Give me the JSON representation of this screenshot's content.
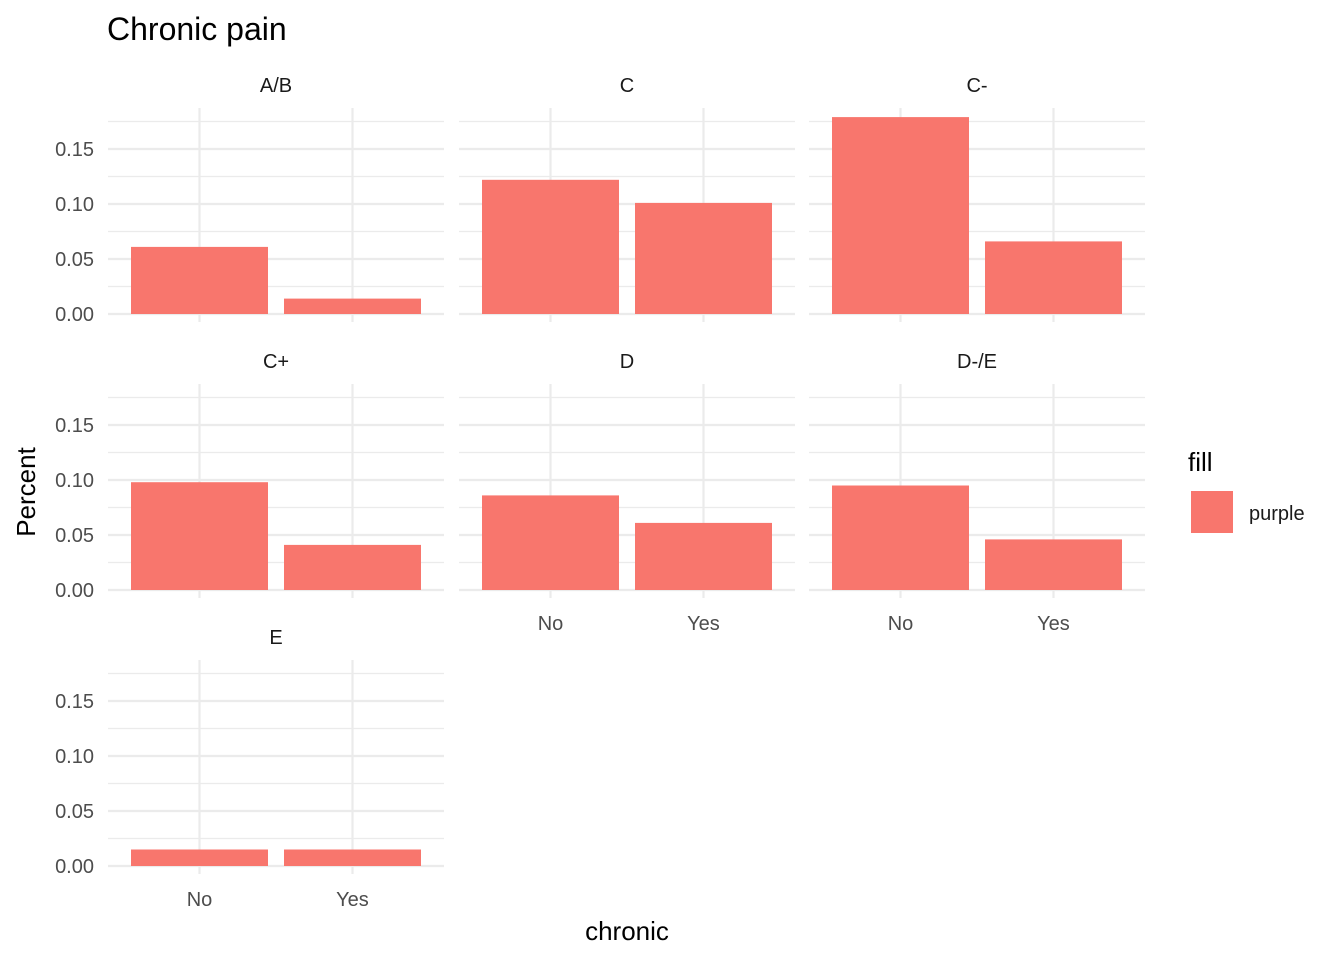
{
  "chart_data": {
    "type": "bar",
    "title": "Chronic pain",
    "xlabel": "chronic",
    "ylabel": "Percent",
    "categories": [
      "No",
      "Yes"
    ],
    "ylim": [
      0,
      0.18
    ],
    "y_ticks": [
      "0.00",
      "0.05",
      "0.10",
      "0.15"
    ],
    "y_tick_values": [
      0,
      0.05,
      0.1,
      0.15
    ],
    "grid": true,
    "legend": {
      "title": "fill",
      "position": "right",
      "entries": [
        {
          "label": "purple",
          "color": "#F8766D"
        }
      ]
    },
    "bar_color": "#F8766D",
    "facets": [
      {
        "label": "A/B",
        "values": [
          0.061,
          0.014
        ]
      },
      {
        "label": "C",
        "values": [
          0.122,
          0.101
        ]
      },
      {
        "label": "C-",
        "values": [
          0.179,
          0.066
        ]
      },
      {
        "label": "C+",
        "values": [
          0.098,
          0.041
        ]
      },
      {
        "label": "D",
        "values": [
          0.086,
          0.061
        ]
      },
      {
        "label": "D-/E",
        "values": [
          0.095,
          0.046
        ]
      },
      {
        "label": "E",
        "values": [
          0.015,
          0.015
        ]
      }
    ]
  }
}
